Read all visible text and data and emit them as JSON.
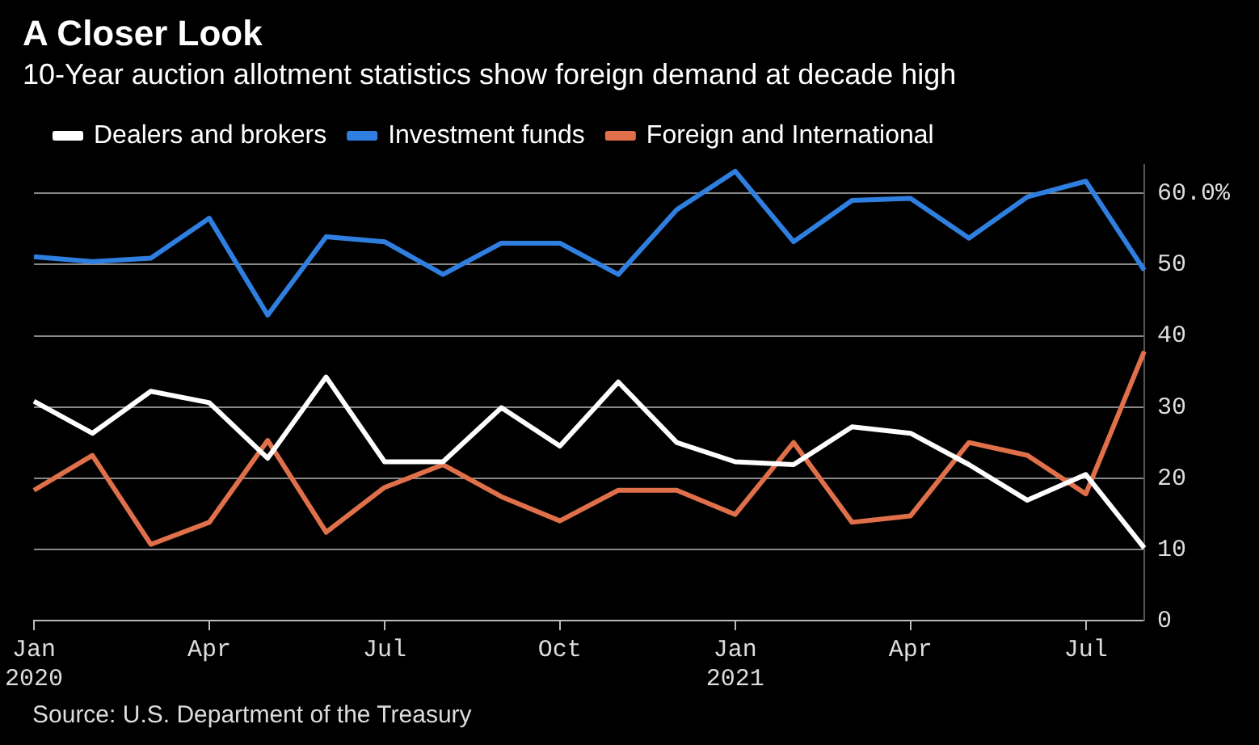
{
  "chart_data": {
    "type": "line",
    "title": "A Closer Look",
    "subtitle": "10-Year auction allotment statistics show foreign demand at decade high",
    "categories": [
      "Jan 2020",
      null,
      null,
      "Apr",
      null,
      null,
      "Jul",
      null,
      null,
      "Oct",
      null,
      null,
      "Jan 2021",
      null,
      null,
      "Apr",
      null,
      null,
      "Jul",
      null
    ],
    "series": [
      {
        "name": "Dealers and brokers",
        "color": "#ffffff",
        "values": [
          30.8,
          26.3,
          32.2,
          30.6,
          22.8,
          34.2,
          22.3,
          22.3,
          29.9,
          24.5,
          33.5,
          25.0,
          22.3,
          21.9,
          27.2,
          26.3,
          21.9,
          16.9,
          20.5,
          10.2
        ]
      },
      {
        "name": "Investment funds",
        "color": "#2f7fe0",
        "values": [
          51.1,
          50.4,
          50.9,
          56.5,
          42.9,
          53.9,
          53.2,
          48.6,
          53.0,
          53.0,
          48.6,
          57.7,
          63.1,
          53.2,
          59.0,
          59.3,
          53.7,
          59.5,
          61.7,
          49.2
        ]
      },
      {
        "name": "Foreign and International",
        "color": "#e0704a",
        "values": [
          18.3,
          23.2,
          10.7,
          13.8,
          25.3,
          12.4,
          18.7,
          21.9,
          17.4,
          14.0,
          18.3,
          18.3,
          14.9,
          25.0,
          13.8,
          14.7,
          25.0,
          23.2,
          17.8,
          37.8
        ]
      }
    ],
    "ylim": [
      0,
      64
    ],
    "yticks": [
      0,
      10,
      20,
      30,
      40,
      50,
      {
        "value": 60,
        "label": "60.0%"
      }
    ],
    "grid": "y",
    "legend": "top left",
    "marker": "none",
    "line_style": "solid",
    "annotations": [
      "Source: U.S. Department of the Treasury"
    ]
  }
}
